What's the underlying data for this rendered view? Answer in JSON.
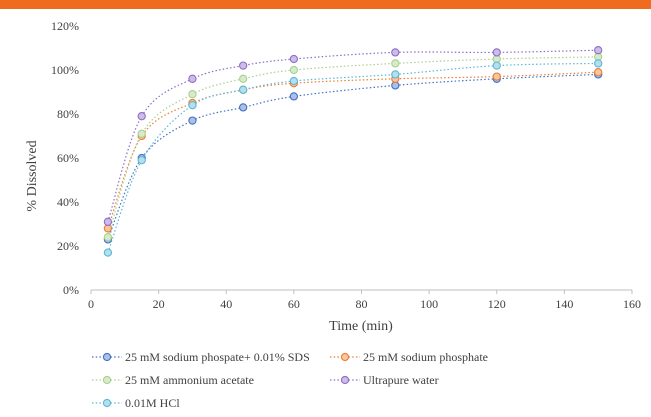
{
  "header": {
    "bar_color": "#ef6c1e"
  },
  "chart_data": {
    "type": "line",
    "xlabel": "Time (min)",
    "ylabel": "% Dissolved",
    "xlim": [
      0,
      160
    ],
    "ylim": [
      0,
      120
    ],
    "x_ticks": [
      "0",
      "20",
      "40",
      "60",
      "80",
      "100",
      "120",
      "140",
      "160"
    ],
    "y_ticks": [
      "0%",
      "20%",
      "40%",
      "60%",
      "80%",
      "100%",
      "120%"
    ],
    "grid": false,
    "legend_position": "bottom-left",
    "line_style": "dotted",
    "marker": "circle",
    "x": [
      5,
      15,
      30,
      45,
      60,
      90,
      120,
      150
    ],
    "series": [
      {
        "name": "25 mM sodium phospate+ 0.01% SDS",
        "color": "#4472c4",
        "values": [
          23,
          60,
          77,
          83,
          88,
          93,
          96,
          98
        ]
      },
      {
        "name": "25 mM sodium phosphate",
        "color": "#ed7d31",
        "values": [
          28,
          70,
          85,
          91,
          94,
          96,
          97,
          99
        ]
      },
      {
        "name": "25 mM ammonium acetate",
        "color": "#a9d18e",
        "values": [
          24,
          71,
          89,
          96,
          100,
          103,
          105,
          106
        ]
      },
      {
        "name": "Ultrapure water",
        "color": "#8e6dc8",
        "values": [
          31,
          79,
          96,
          102,
          105,
          108,
          108,
          109
        ]
      },
      {
        "name": "0.01M HCl",
        "color": "#5bb8d6",
        "values": [
          17,
          59,
          84,
          91,
          95,
          98,
          102,
          103
        ]
      }
    ]
  }
}
